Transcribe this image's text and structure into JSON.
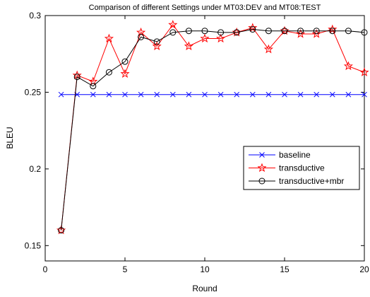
{
  "chart_data": {
    "type": "line",
    "title": "Comparison of different Settings under MT03:DEV and MT08:TEST",
    "xlabel": "Round",
    "ylabel": "BLEU",
    "xlim": [
      0,
      20
    ],
    "ylim": [
      0.14,
      0.3
    ],
    "xticks": [
      0,
      5,
      10,
      15,
      20
    ],
    "yticks": [
      0.15,
      0.2,
      0.25,
      0.3
    ],
    "xtick_labels": [
      "0",
      "5",
      "10",
      "15",
      "20"
    ],
    "ytick_labels": [
      "0.15",
      "0.2",
      "0.25",
      "0.3"
    ],
    "grid": false,
    "legend_position": "right",
    "x": [
      1,
      2,
      3,
      4,
      5,
      6,
      7,
      8,
      9,
      10,
      11,
      12,
      13,
      14,
      15,
      16,
      17,
      18,
      19,
      20
    ],
    "series": [
      {
        "name": "baseline",
        "color": "#0000ff",
        "marker": "x",
        "values": [
          0.2485,
          0.2485,
          0.2485,
          0.2485,
          0.2485,
          0.2485,
          0.2485,
          0.2485,
          0.2485,
          0.2485,
          0.2485,
          0.2485,
          0.2485,
          0.2485,
          0.2485,
          0.2485,
          0.2485,
          0.2485,
          0.2485,
          0.2485
        ]
      },
      {
        "name": "transductive",
        "color": "#ff0000",
        "marker": "star",
        "values": [
          0.16,
          0.261,
          0.257,
          0.285,
          0.262,
          0.289,
          0.28,
          0.294,
          0.28,
          0.285,
          0.285,
          0.289,
          0.292,
          0.278,
          0.29,
          0.288,
          0.288,
          0.291,
          0.267,
          0.263
        ]
      },
      {
        "name": "transductive+mbr",
        "color": "#000000",
        "marker": "circle",
        "values": [
          0.16,
          0.26,
          0.254,
          0.263,
          0.27,
          0.286,
          0.283,
          0.289,
          0.29,
          0.29,
          0.289,
          0.289,
          0.291,
          0.29,
          0.29,
          0.29,
          0.29,
          0.29,
          0.29,
          0.289
        ]
      }
    ]
  }
}
